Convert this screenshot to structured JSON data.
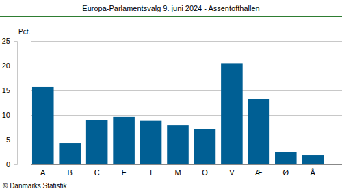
{
  "chart_data": {
    "type": "bar",
    "title": "Europa-Parlamentsvalg 9. juni 2024 - Assentofthallen",
    "ylabel": "Pct.",
    "source": "© Danmarks Statistik",
    "categories": [
      "A",
      "B",
      "C",
      "F",
      "I",
      "M",
      "O",
      "V",
      "Æ",
      "Ø",
      "Å"
    ],
    "values": [
      15.7,
      4.3,
      8.9,
      9.6,
      8.8,
      7.9,
      7.2,
      20.5,
      13.3,
      2.5,
      1.8
    ],
    "color": "#005f94",
    "ylim": [
      0,
      25
    ],
    "yticks": [
      0,
      5,
      10,
      15,
      20,
      25
    ],
    "grid": true
  }
}
